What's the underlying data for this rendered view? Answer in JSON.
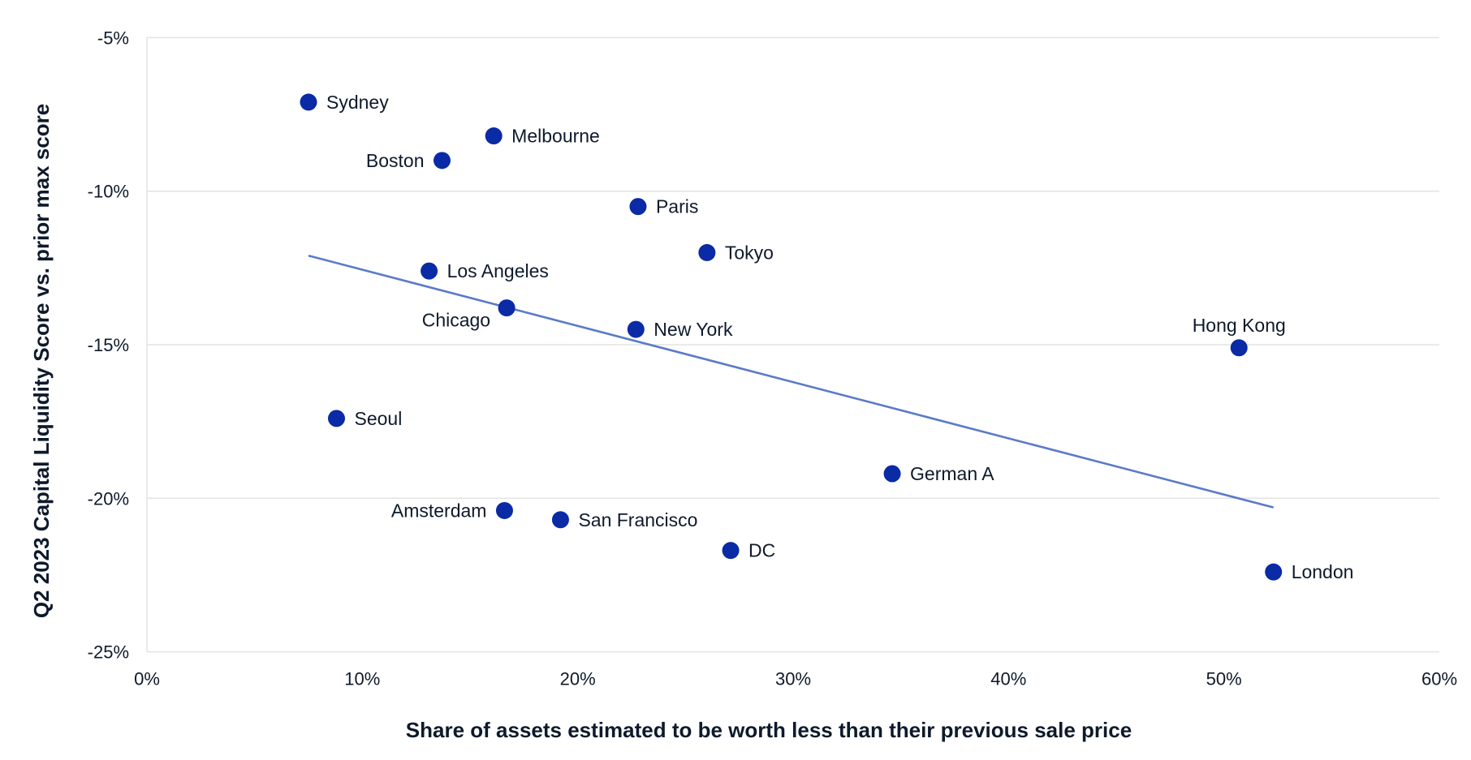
{
  "chart_data": {
    "type": "scatter",
    "title": "",
    "xlabel": "Share of assets estimated to be worth less than their previous sale price",
    "ylabel": "Q2 2023 Capital Liquidity Score vs. prior max score",
    "xlim": [
      0,
      60
    ],
    "ylim": [
      -25,
      -5
    ],
    "x_ticks": [
      0,
      10,
      20,
      30,
      40,
      50,
      60
    ],
    "x_tick_labels": [
      "0%",
      "10%",
      "20%",
      "30%",
      "40%",
      "50%",
      "60%"
    ],
    "y_ticks": [
      -5,
      -10,
      -15,
      -20,
      -25
    ],
    "y_tick_labels": [
      "-5%",
      "-10%",
      "-15%",
      "-20%",
      "-25%"
    ],
    "grid": "horizontal",
    "legend": "none",
    "units": "percent",
    "points": [
      {
        "label": "Sydney",
        "x": 7.5,
        "y": -7.1,
        "label_pos": "right"
      },
      {
        "label": "Melbourne",
        "x": 16.1,
        "y": -8.2,
        "label_pos": "right"
      },
      {
        "label": "Boston",
        "x": 13.7,
        "y": -9.0,
        "label_pos": "left"
      },
      {
        "label": "Paris",
        "x": 22.8,
        "y": -10.5,
        "label_pos": "right"
      },
      {
        "label": "Tokyo",
        "x": 26.0,
        "y": -12.0,
        "label_pos": "right"
      },
      {
        "label": "Los Angeles",
        "x": 13.1,
        "y": -12.6,
        "label_pos": "right"
      },
      {
        "label": "Chicago",
        "x": 16.7,
        "y": -13.8,
        "label_pos": "below-left"
      },
      {
        "label": "New York",
        "x": 22.7,
        "y": -14.5,
        "label_pos": "right"
      },
      {
        "label": "Hong Kong",
        "x": 50.7,
        "y": -15.1,
        "label_pos": "above"
      },
      {
        "label": "Seoul",
        "x": 8.8,
        "y": -17.4,
        "label_pos": "right"
      },
      {
        "label": "German A",
        "x": 34.6,
        "y": -19.2,
        "label_pos": "right"
      },
      {
        "label": "Amsterdam",
        "x": 16.6,
        "y": -20.4,
        "label_pos": "left"
      },
      {
        "label": "San Francisco",
        "x": 19.2,
        "y": -20.7,
        "label_pos": "right"
      },
      {
        "label": "DC",
        "x": 27.1,
        "y": -21.7,
        "label_pos": "right"
      },
      {
        "label": "London",
        "x": 52.3,
        "y": -22.4,
        "label_pos": "right"
      }
    ],
    "trendline": {
      "type": "linear",
      "x": [
        7.5,
        52.3
      ],
      "y": [
        -12.1,
        -20.3
      ]
    },
    "colors": {
      "point": "#0a2aa6",
      "trendline": "#5a7bc8",
      "text": "#0e1a2b",
      "grid": "#e3e3e3"
    }
  }
}
